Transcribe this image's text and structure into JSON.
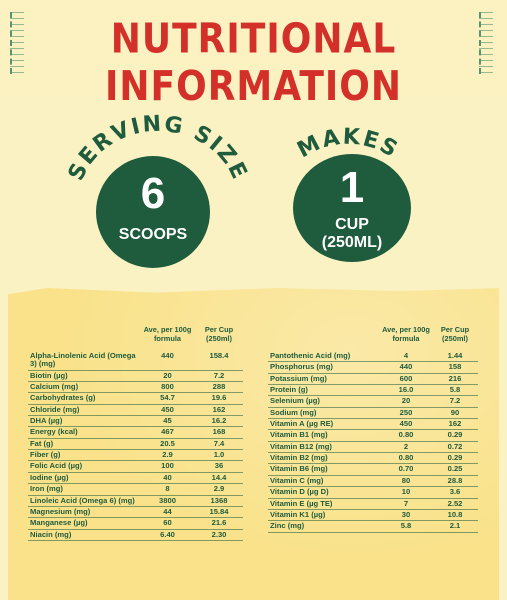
{
  "title": "NUTRITIONAL INFORMATION",
  "serving": {
    "arc_text": "SERVING SIZE",
    "number": "6",
    "unit": "SCOOPS"
  },
  "makes": {
    "arc_text": "MAKES",
    "number": "1",
    "unit_line1": "CUP",
    "unit_line2": "(250ML)"
  },
  "table": {
    "col_per100g": "Ave, per 100g formula",
    "col_percup": "Per Cup (250ml)",
    "left_rows": [
      [
        "Alpha-Linolenic Acid (Omega 3) (mg)",
        "440",
        "158.4"
      ],
      [
        "Biotin (µg)",
        "20",
        "7.2"
      ],
      [
        "Calcium (mg)",
        "800",
        "288"
      ],
      [
        "Carbohydrates (g)",
        "54.7",
        "19.6"
      ],
      [
        "Chloride (mg)",
        "450",
        "162"
      ],
      [
        "DHA (µg)",
        "45",
        "16.2"
      ],
      [
        "Energy (kcal)",
        "467",
        "168"
      ],
      [
        "Fat (g)",
        "20.5",
        "7.4"
      ],
      [
        "Fiber (g)",
        "2.9",
        "1.0"
      ],
      [
        "Folic Acid (µg)",
        "100",
        "36"
      ],
      [
        "Iodine (µg)",
        "40",
        "14.4"
      ],
      [
        "Iron (mg)",
        "8",
        "2.9"
      ],
      [
        "Linoleic Acid (Omega 6) (mg)",
        "3800",
        "1368"
      ],
      [
        "Magnesium (mg)",
        "44",
        "15.84"
      ],
      [
        "Manganese (µg)",
        "60",
        "21.6"
      ],
      [
        "Niacin (mg)",
        "6.40",
        "2.30"
      ]
    ],
    "right_rows": [
      [
        "Pantothenic Acid (mg)",
        "4",
        "1.44"
      ],
      [
        "Phosphorus (mg)",
        "440",
        "158"
      ],
      [
        "Potassium (mg)",
        "600",
        "216"
      ],
      [
        "Protein (g)",
        "16.0",
        "5.8"
      ],
      [
        "Selenium (µg)",
        "20",
        "7.2"
      ],
      [
        "Sodium (mg)",
        "250",
        "90"
      ],
      [
        "Vitamin A (µg RE)",
        "450",
        "162"
      ],
      [
        "Vitamin B1 (mg)",
        "0.80",
        "0.29"
      ],
      [
        "Vitamin B12 (mg)",
        "2",
        "0.72"
      ],
      [
        "Vitamin B2 (mg)",
        "0.80",
        "0.29"
      ],
      [
        "Vitamin B6 (mg)",
        "0.70",
        "0.25"
      ],
      [
        "Vitamin C (mg)",
        "80",
        "28.8"
      ],
      [
        "Vitamin D (µg D)",
        "10",
        "3.6"
      ],
      [
        "Vitamin E (µg TE)",
        "7",
        "2.52"
      ],
      [
        "Vitamin K1 (µg)",
        "30",
        "10.8"
      ],
      [
        "Zinc (mg)",
        "5.8",
        "2.1"
      ]
    ]
  },
  "colors": {
    "title": "#d4302a",
    "green": "#1f5b3d",
    "panel": "#f9e28a",
    "background": "#fbf2c4"
  }
}
